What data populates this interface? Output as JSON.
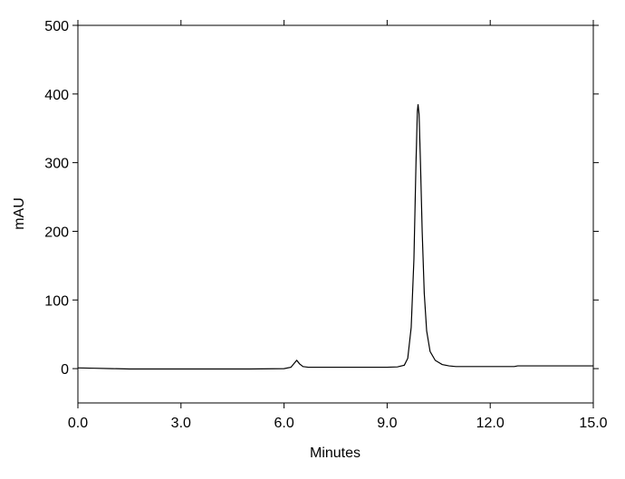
{
  "chart_data": {
    "type": "line",
    "x_label": "Minutes",
    "y_label": "mAU",
    "x": [
      0,
      0.5,
      1,
      1.5,
      2,
      3,
      4,
      5,
      6,
      6.2,
      6.3,
      6.37,
      6.45,
      6.55,
      6.7,
      7,
      8,
      9,
      9.3,
      9.5,
      9.6,
      9.7,
      9.78,
      9.84,
      9.88,
      9.9,
      9.93,
      9.97,
      10.02,
      10.08,
      10.15,
      10.25,
      10.4,
      10.6,
      10.8,
      11,
      12,
      12.7,
      12.8,
      13,
      14,
      15
    ],
    "series": [
      {
        "color": "#000000",
        "values": [
          1,
          0.5,
          0,
          -0.5,
          -0.5,
          -0.5,
          -0.5,
          -0.5,
          0,
          2,
          8,
          12,
          7,
          3,
          2,
          2,
          2,
          2,
          2.5,
          5,
          15,
          60,
          160,
          300,
          375,
          385,
          370,
          300,
          200,
          110,
          55,
          25,
          12,
          6,
          4,
          3,
          3,
          3,
          4,
          4,
          4,
          4
        ]
      }
    ],
    "xlim": [
      0,
      15
    ],
    "xticks": [
      {
        "value": 0,
        "label": "0.0"
      },
      {
        "value": 3,
        "label": "3.0"
      },
      {
        "value": 6,
        "label": "6.0"
      },
      {
        "value": 9,
        "label": "9.0"
      },
      {
        "value": 12,
        "label": "12.0"
      },
      {
        "value": 15,
        "label": "15.0"
      }
    ],
    "ylim": [
      -50,
      500
    ],
    "yticks": [
      0,
      100,
      200,
      300,
      400,
      500
    ]
  }
}
